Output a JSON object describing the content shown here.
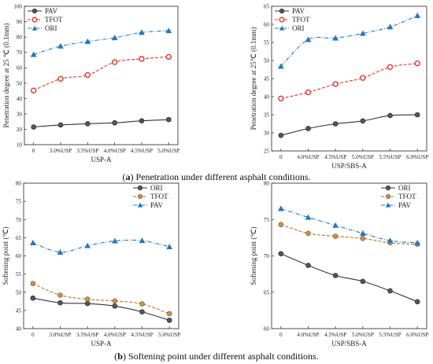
{
  "captions": {
    "a": {
      "label": "a",
      "text": " Penetration under different asphalt conditions."
    },
    "b": {
      "label": "b",
      "text": " Softening point under different asphalt conditions."
    }
  },
  "chart_data": [
    {
      "id": "p1",
      "type": "line",
      "xlabel": "USP-A",
      "ylabel": "Penetration degree at 25 ℃ (0.1mm)",
      "categories": [
        "0",
        "3.0%USP",
        "3.5%USP",
        "4.0%USP",
        "4.5%USP",
        "5.0%USP"
      ],
      "ylim": [
        10,
        100
      ],
      "yticks": [
        10,
        20,
        30,
        40,
        50,
        60,
        70,
        80,
        90,
        100
      ],
      "legend_position": "top-left",
      "series": [
        {
          "name": "PAV",
          "values": [
            21.5,
            22.8,
            23.6,
            24.2,
            25.5,
            26.3
          ],
          "color": "#333333",
          "marker": "circle",
          "dash": "solid"
        },
        {
          "name": "TFOT",
          "values": [
            45.2,
            52.8,
            55.3,
            63.7,
            65.8,
            67.1
          ],
          "color": "#e8312a",
          "marker": "open-circle",
          "dash": "dash"
        },
        {
          "name": "ORI",
          "values": [
            68.6,
            74.1,
            77.1,
            79.5,
            83.0,
            84.1
          ],
          "color": "#2377c2",
          "marker": "triangle",
          "dash": "dashdot"
        }
      ]
    },
    {
      "id": "p2",
      "type": "line",
      "xlabel": "USP/SBS-A",
      "ylabel": "Penetration degree at 25℃ (0.1mm)",
      "categories": [
        "0",
        "4.0%USP",
        "4.5%USP",
        "5.0%USP",
        "5.5%USP",
        "6.0%USP"
      ],
      "ylim": [
        25,
        65
      ],
      "yticks": [
        25,
        30,
        35,
        40,
        45,
        50,
        55,
        60,
        65
      ],
      "legend_position": "top-left",
      "series": [
        {
          "name": "PAV",
          "values": [
            29.3,
            31.2,
            32.5,
            33.3,
            34.8,
            35.0
          ],
          "color": "#333333",
          "marker": "circle",
          "dash": "solid"
        },
        {
          "name": "TFOT",
          "values": [
            39.5,
            41.2,
            43.5,
            45.2,
            48.2,
            49.2
          ],
          "color": "#e8312a",
          "marker": "open-circle",
          "dash": "dash"
        },
        {
          "name": "ORI",
          "values": [
            48.4,
            55.8,
            56.2,
            57.5,
            59.3,
            62.4
          ],
          "color": "#2377c2",
          "marker": "triangle",
          "dash": "dashdot"
        }
      ]
    },
    {
      "id": "p3",
      "type": "line",
      "xlabel": "USP-A",
      "ylabel": "Softening point (℃)",
      "categories": [
        "0",
        "3.0%USP",
        "3.5%USP",
        "4.0%USP",
        "4.5%USP",
        "5.0%USP"
      ],
      "ylim": [
        40,
        80
      ],
      "yticks": [
        40,
        45,
        50,
        55,
        60,
        65,
        70,
        75,
        80
      ],
      "legend_position": "top-right",
      "series": [
        {
          "name": "ORI",
          "values": [
            48.4,
            47.1,
            46.9,
            46.2,
            44.6,
            42.3
          ],
          "color": "#333333",
          "marker": "circle",
          "dash": "solid"
        },
        {
          "name": "TFOT",
          "values": [
            52.4,
            49.2,
            48.1,
            47.6,
            46.8,
            44.1
          ],
          "color": "#b8701e",
          "marker": "circle-brown",
          "dash": "dash"
        },
        {
          "name": "PAV",
          "values": [
            63.6,
            61.0,
            62.8,
            64.1,
            64.2,
            62.5
          ],
          "color": "#2377c2",
          "marker": "triangle",
          "dash": "dashdot"
        }
      ]
    },
    {
      "id": "p4",
      "type": "line",
      "xlabel": "USP/SBS-A",
      "ylabel": "Softening point (℃)",
      "categories": [
        "0",
        "4.0%USP",
        "4.5%USP",
        "5.0%USP",
        "5.5%USP",
        "6.0%USP"
      ],
      "ylim": [
        60,
        80
      ],
      "yticks": [
        60,
        65,
        70,
        75,
        80
      ],
      "legend_position": "top-right",
      "series": [
        {
          "name": "ORI",
          "values": [
            70.3,
            68.7,
            67.3,
            66.5,
            65.2,
            63.7
          ],
          "color": "#333333",
          "marker": "circle",
          "dash": "solid"
        },
        {
          "name": "TFOT",
          "values": [
            74.3,
            73.1,
            72.7,
            72.4,
            71.8,
            71.6
          ],
          "color": "#b8701e",
          "marker": "circle-brown",
          "dash": "dash"
        },
        {
          "name": "PAV",
          "values": [
            76.5,
            75.3,
            74.2,
            73.1,
            72.1,
            71.8
          ],
          "color": "#2377c2",
          "marker": "triangle",
          "dash": "dashdot"
        }
      ]
    }
  ]
}
